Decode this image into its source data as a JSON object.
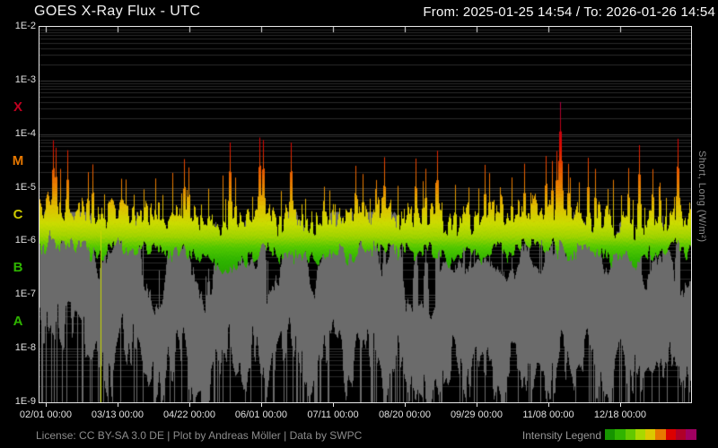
{
  "header": {
    "title": "GOES X-Ray Flux - UTC",
    "date_range": "From: 2025-01-25 14:54  /  To: 2026-01-26 14:54"
  },
  "right_axis_label": "Short, Long (W/m²)",
  "footer": {
    "license": "License: CC BY-SA 3.0 DE | Plot by Andreas Möller | Data by SWPC",
    "legend_label": "Intensity Legend",
    "legend_colors": [
      "#169400",
      "#30b400",
      "#62c800",
      "#a8d800",
      "#dcc800",
      "#e87800",
      "#dc0000",
      "#b00028",
      "#a00060"
    ]
  },
  "chart_data": {
    "type": "line",
    "title": "GOES X-Ray Flux - UTC",
    "x_range": [
      "2025-01-25 14:54",
      "2026-01-26 14:54"
    ],
    "y_scale": "log",
    "y_log_range": [
      -9,
      -2
    ],
    "grid": {
      "minor_color": "#2a2a2a",
      "major_color": "#3a3a3a"
    },
    "y_ticks": [
      {
        "label": "1E-2",
        "log": -2
      },
      {
        "label": "1E-3",
        "log": -3
      },
      {
        "label": "1E-4",
        "log": -4
      },
      {
        "label": "1E-5",
        "log": -5
      },
      {
        "label": "1E-6",
        "log": -6
      },
      {
        "label": "1E-7",
        "log": -7
      },
      {
        "label": "1E-8",
        "log": -8
      },
      {
        "label": "1E-9",
        "log": -9
      }
    ],
    "class_bands": [
      {
        "label": "X",
        "log_center": -3.5,
        "color": "#c00020"
      },
      {
        "label": "M",
        "log_center": -4.5,
        "color": "#e87800"
      },
      {
        "label": "C",
        "log_center": -5.5,
        "color": "#ccc800"
      },
      {
        "label": "B",
        "log_center": -6.5,
        "color": "#2eb400"
      },
      {
        "label": "A",
        "log_center": -7.5,
        "color": "#2eb400"
      }
    ],
    "x_ticks": [
      {
        "label": "02/01 00:00",
        "f": 0.00964
      },
      {
        "label": "03/13 00:00",
        "f": 0.11983
      },
      {
        "label": "04/22 00:00",
        "f": 0.23003
      },
      {
        "label": "06/01 00:00",
        "f": 0.34022
      },
      {
        "label": "07/11 00:00",
        "f": 0.45041
      },
      {
        "label": "08/20 00:00",
        "f": 0.56061
      },
      {
        "label": "09/29 00:00",
        "f": 0.6708
      },
      {
        "label": "11/08 00:00",
        "f": 0.78099
      },
      {
        "label": "12/18 00:00",
        "f": 0.89118
      }
    ],
    "series": [
      {
        "name": "Long",
        "style": "intensity-colormap"
      },
      {
        "name": "Short",
        "color": "#6b6b6b"
      }
    ],
    "colormap": [
      [
        -7.0,
        "#1e8c00"
      ],
      [
        -6.35,
        "#2eb400"
      ],
      [
        -6.1,
        "#52c800"
      ],
      [
        -5.9,
        "#a0d400"
      ],
      [
        -5.65,
        "#ccdc00"
      ],
      [
        -5.35,
        "#e0c000"
      ],
      [
        -5.0,
        "#e88800"
      ],
      [
        -4.6,
        "#e85000"
      ],
      [
        -4.2,
        "#dc0800"
      ],
      [
        -3.7,
        "#b80020"
      ],
      [
        -3.2,
        "#a80060"
      ]
    ],
    "long_baseline_envelope": [
      [
        0.0,
        -5.75
      ],
      [
        0.04,
        -5.8
      ],
      [
        0.08,
        -5.92
      ],
      [
        0.12,
        -5.88
      ],
      [
        0.16,
        -5.85
      ],
      [
        0.2,
        -5.92
      ],
      [
        0.24,
        -6.0
      ],
      [
        0.28,
        -6.12
      ],
      [
        0.32,
        -6.08
      ],
      [
        0.36,
        -5.95
      ],
      [
        0.4,
        -5.9
      ],
      [
        0.44,
        -6.0
      ],
      [
        0.48,
        -5.9
      ],
      [
        0.52,
        -5.86
      ],
      [
        0.56,
        -5.92
      ],
      [
        0.6,
        -6.02
      ],
      [
        0.64,
        -6.08
      ],
      [
        0.68,
        -5.95
      ],
      [
        0.72,
        -5.86
      ],
      [
        0.76,
        -5.8
      ],
      [
        0.8,
        -5.86
      ],
      [
        0.84,
        -5.95
      ],
      [
        0.88,
        -6.05
      ],
      [
        0.92,
        -6.15
      ],
      [
        0.96,
        -5.92
      ],
      [
        1.0,
        -5.86
      ]
    ],
    "short_baseline_envelope": [
      [
        0.0,
        -7.0
      ],
      [
        0.05,
        -7.1
      ],
      [
        0.1,
        -7.3
      ],
      [
        0.15,
        -7.2
      ],
      [
        0.2,
        -7.5
      ],
      [
        0.25,
        -7.6
      ],
      [
        0.3,
        -7.5
      ],
      [
        0.35,
        -7.3
      ],
      [
        0.4,
        -7.5
      ],
      [
        0.45,
        -7.4
      ],
      [
        0.5,
        -7.3
      ],
      [
        0.55,
        -7.4
      ],
      [
        0.6,
        -7.6
      ],
      [
        0.65,
        -7.5
      ],
      [
        0.7,
        -7.4
      ],
      [
        0.75,
        -7.3
      ],
      [
        0.8,
        -7.4
      ],
      [
        0.85,
        -7.5
      ],
      [
        0.9,
        -7.6
      ],
      [
        0.95,
        -7.5
      ],
      [
        1.0,
        -7.4
      ]
    ],
    "flares": [
      [
        0.0207,
        -4.1
      ],
      [
        0.0248,
        -4.25
      ],
      [
        0.0427,
        -4.3
      ],
      [
        0.0744,
        -4.7
      ],
      [
        0.0813,
        -4.55
      ],
      [
        0.1322,
        -5.05
      ],
      [
        0.2218,
        -4.45
      ],
      [
        0.2287,
        -4.6
      ],
      [
        0.259,
        -5.0
      ],
      [
        0.292,
        -4.15
      ],
      [
        0.3003,
        -4.8
      ],
      [
        0.3375,
        -4.05
      ],
      [
        0.343,
        -4.1
      ],
      [
        0.3857,
        -4.15
      ],
      [
        0.4077,
        -5.2
      ],
      [
        0.4449,
        -5.05
      ],
      [
        0.4848,
        -4.57
      ],
      [
        0.4959,
        -4.73
      ],
      [
        0.5289,
        -4.42
      ],
      [
        0.5496,
        -4.96
      ],
      [
        0.5771,
        -4.44
      ],
      [
        0.5923,
        -4.64
      ],
      [
        0.6102,
        -4.31
      ],
      [
        0.6377,
        -4.93
      ],
      [
        0.6832,
        -4.57
      ],
      [
        0.6901,
        -4.72
      ],
      [
        0.7245,
        -4.8
      ],
      [
        0.7438,
        -4.55
      ],
      [
        0.7769,
        -4.39
      ],
      [
        0.7865,
        -4.5
      ],
      [
        0.7934,
        -4.31
      ],
      [
        0.7989,
        -3.4
      ],
      [
        0.8113,
        -4.55
      ],
      [
        0.8416,
        -4.44
      ],
      [
        0.8526,
        -4.64
      ],
      [
        0.9035,
        -4.6
      ],
      [
        0.9201,
        -4.2
      ],
      [
        0.9408,
        -4.64
      ],
      [
        0.9793,
        -4.07
      ]
    ],
    "artifact_line": {
      "f": 0.093,
      "color": "#c8d800",
      "from_log": -5.8,
      "to_log": -9
    },
    "noise_seed": 1337
  }
}
